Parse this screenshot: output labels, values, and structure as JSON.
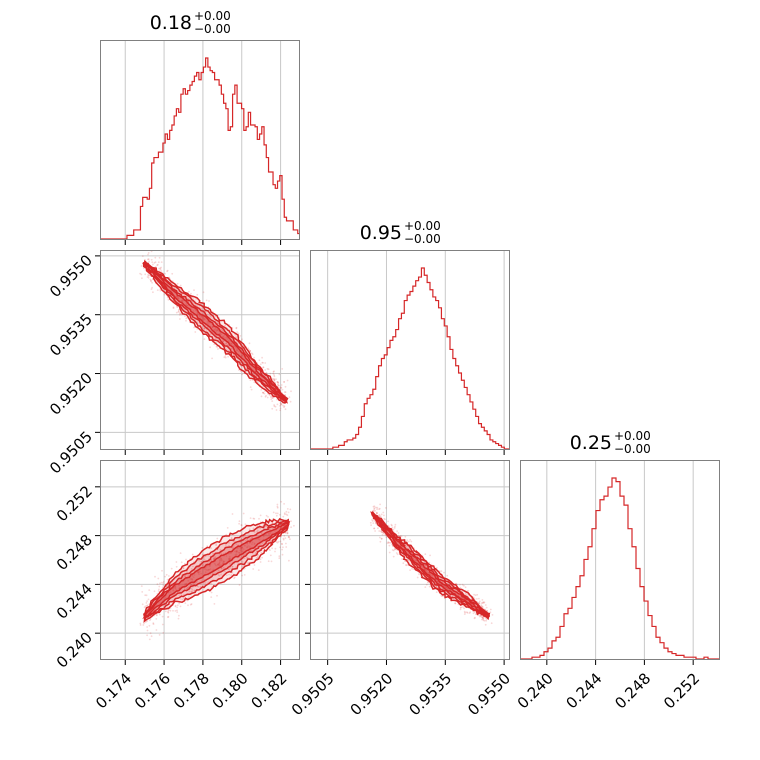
{
  "chart_data": {
    "type": "corner",
    "color": "#d62728",
    "parameters": [
      {
        "title_value": "0.18",
        "title_plus": "+0.00",
        "title_minus": "−0.00",
        "range": [
          0.1727,
          0.183
        ],
        "ticks": [
          0.174,
          0.176,
          0.178,
          0.18,
          0.182
        ],
        "tick_labels": [
          "0.174",
          "0.176",
          "0.178",
          "0.180",
          "0.182"
        ],
        "hist": [
          0,
          0,
          0,
          0,
          0,
          0,
          0,
          0,
          0,
          0,
          0,
          0,
          0.02,
          0.02,
          0.02,
          0.05,
          0.05,
          0.05,
          0.18,
          0.23,
          0.23,
          0.22,
          0.28,
          0.42,
          0.45,
          0.45,
          0.48,
          0.48,
          0.53,
          0.58,
          0.55,
          0.6,
          0.63,
          0.68,
          0.72,
          0.7,
          0.8,
          0.83,
          0.8,
          0.82,
          0.85,
          0.87,
          0.9,
          0.92,
          0.88,
          0.92,
          0.95,
          1.0,
          0.95,
          0.93,
          0.92,
          0.88,
          0.88,
          0.85,
          0.8,
          0.75,
          0.72,
          0.6,
          0.62,
          0.8,
          0.85,
          0.75,
          0.75,
          0.72,
          0.6,
          0.62,
          0.7,
          0.63,
          0.63,
          0.62,
          0.55,
          0.58,
          0.62,
          0.52,
          0.45,
          0.37,
          0.37,
          0.3,
          0.28,
          0.32,
          0.35,
          0.22,
          0.12,
          0.1,
          0.1,
          0.1,
          0.05,
          0.05,
          0.03
        ]
      },
      {
        "title_value": "0.95",
        "title_plus": "+0.00",
        "title_minus": "−0.00",
        "range": [
          0.95005,
          0.95515
        ],
        "ticks": [
          0.9505,
          0.952,
          0.9535,
          0.955
        ],
        "tick_labels": [
          "0.9505",
          "0.9520",
          "0.9535",
          "0.9550"
        ],
        "hist": [
          0,
          0,
          0,
          0,
          0,
          0,
          0,
          0,
          0.01,
          0.01,
          0.02,
          0.02,
          0.04,
          0.05,
          0.05,
          0.06,
          0.08,
          0.12,
          0.18,
          0.25,
          0.28,
          0.3,
          0.33,
          0.4,
          0.46,
          0.5,
          0.52,
          0.56,
          0.6,
          0.62,
          0.66,
          0.72,
          0.75,
          0.82,
          0.85,
          0.87,
          0.9,
          0.93,
          0.95,
          1.0,
          0.96,
          0.92,
          0.88,
          0.84,
          0.82,
          0.78,
          0.72,
          0.68,
          0.62,
          0.55,
          0.5,
          0.46,
          0.42,
          0.38,
          0.34,
          0.3,
          0.26,
          0.22,
          0.18,
          0.14,
          0.12,
          0.1,
          0.08,
          0.05,
          0.04,
          0.03,
          0.02,
          0.01,
          0,
          0
        ]
      },
      {
        "title_value": "0.25",
        "title_plus": "+0.00",
        "title_minus": "−0.00",
        "range": [
          0.2378,
          0.2542
        ],
        "ticks": [
          0.24,
          0.244,
          0.248,
          0.252
        ],
        "tick_labels": [
          "0.240",
          "0.244",
          "0.248",
          "0.252"
        ],
        "hist": [
          0,
          0,
          0,
          0.01,
          0.01,
          0.02,
          0.04,
          0.06,
          0.1,
          0.12,
          0.18,
          0.25,
          0.28,
          0.34,
          0.4,
          0.46,
          0.55,
          0.62,
          0.72,
          0.82,
          0.88,
          0.9,
          0.95,
          1.0,
          0.98,
          0.9,
          0.85,
          0.72,
          0.62,
          0.5,
          0.4,
          0.32,
          0.24,
          0.18,
          0.12,
          0.09,
          0.06,
          0.04,
          0.03,
          0.02,
          0.02,
          0.01,
          0.01,
          0.01,
          0,
          0,
          0.01,
          0,
          0,
          0
        ]
      }
    ],
    "pairs": [
      {
        "x": 0,
        "y": 1,
        "ridge": [
          [
            0.175,
            0.9548
          ],
          [
            0.1766,
            0.954
          ],
          [
            0.178,
            0.9534
          ],
          [
            0.1794,
            0.9528
          ],
          [
            0.1808,
            0.952
          ],
          [
            0.1823,
            0.9513
          ]
        ],
        "width": 0.00038,
        "direction": "negative"
      },
      {
        "x": 0,
        "y": 2,
        "ridge": [
          [
            0.175,
            0.2414
          ],
          [
            0.1766,
            0.2437
          ],
          [
            0.1782,
            0.2452
          ],
          [
            0.1797,
            0.2466
          ],
          [
            0.1812,
            0.2479
          ],
          [
            0.1824,
            0.249
          ]
        ],
        "width": 0.0018,
        "direction": "positive"
      },
      {
        "x": 1,
        "y": 2,
        "ridge": [
          [
            0.95165,
            0.2498
          ],
          [
            0.95225,
            0.2475
          ],
          [
            0.9528,
            0.2458
          ],
          [
            0.95335,
            0.2441
          ],
          [
            0.954,
            0.2428
          ],
          [
            0.9546,
            0.2414
          ]
        ],
        "width": 0.0008,
        "direction": "negative"
      }
    ],
    "grid": true,
    "legend": "none"
  }
}
